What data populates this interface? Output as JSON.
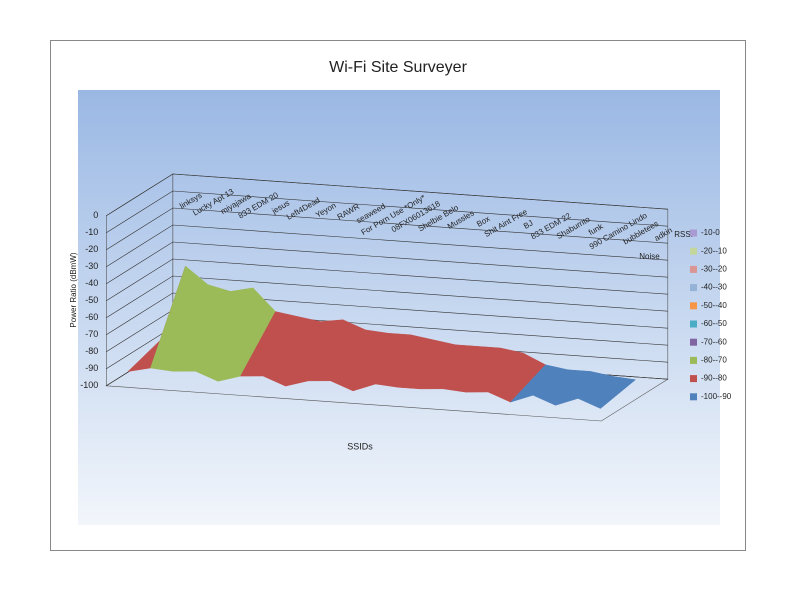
{
  "chart_data": {
    "type": "surface",
    "title": "Wi-Fi Site Surveyer",
    "y_label": "Power Ratio (dBmW)",
    "x_label": "SSIDs",
    "categories": [
      "linksys",
      "Lucky Apt 13",
      "miyajawa",
      "833 EDM 20",
      "jesus",
      "Left4Dead",
      "Yeyon",
      "RAWR",
      "seaweed",
      "For Porn Use *Only*",
      "08FX06013618",
      "Shelbie Belo",
      "Mussles",
      "Box",
      "Shit Aint Free",
      "BJ",
      "833 EDM 22",
      "Shaburrito",
      "funk",
      "990 Camino Lindo",
      "bubbletees",
      "adkin"
    ],
    "series": [
      {
        "name": "RSSI",
        "values": [
          -88,
          -45,
          -55,
          -58,
          -55,
          -68,
          -70,
          -72,
          -70,
          -75,
          -76,
          -76,
          -78,
          -80,
          -80,
          -80,
          -82,
          -88,
          -90,
          -90,
          -92,
          -93
        ]
      },
      {
        "name": "Noise",
        "values": [
          -95,
          -92,
          -93,
          -92,
          -97,
          -93,
          -92,
          -97,
          -93,
          -92,
          -97,
          -92,
          -93,
          -93,
          -92,
          -93,
          -92,
          -97,
          -92,
          -97,
          -92,
          -97
        ]
      }
    ],
    "ylim": [
      -100,
      0
    ],
    "yticks": [
      0,
      -10,
      -20,
      -30,
      -40,
      -50,
      -60,
      -70,
      -80,
      -90,
      -100
    ],
    "legend_position": "right",
    "bands": [
      {
        "label": "-10-0",
        "min": -10,
        "max": 0,
        "color": "#a99bd1"
      },
      {
        "label": "-20--10",
        "min": -20,
        "max": -10,
        "color": "#c3d69b"
      },
      {
        "label": "-30--20",
        "min": -30,
        "max": -20,
        "color": "#d99694"
      },
      {
        "label": "-40--30",
        "min": -40,
        "max": -30,
        "color": "#95b3d7"
      },
      {
        "label": "-50--40",
        "min": -50,
        "max": -40,
        "color": "#f79646"
      },
      {
        "label": "-60--50",
        "min": -60,
        "max": -50,
        "color": "#4bacc6"
      },
      {
        "label": "-70--60",
        "min": -70,
        "max": -60,
        "color": "#8064a2"
      },
      {
        "label": "-80--70",
        "min": -80,
        "max": -70,
        "color": "#9bbb59"
      },
      {
        "label": "-90--80",
        "min": -90,
        "max": -80,
        "color": "#c0504d"
      },
      {
        "label": "-100--90",
        "min": -100,
        "max": -90,
        "color": "#4f81bd"
      }
    ]
  }
}
